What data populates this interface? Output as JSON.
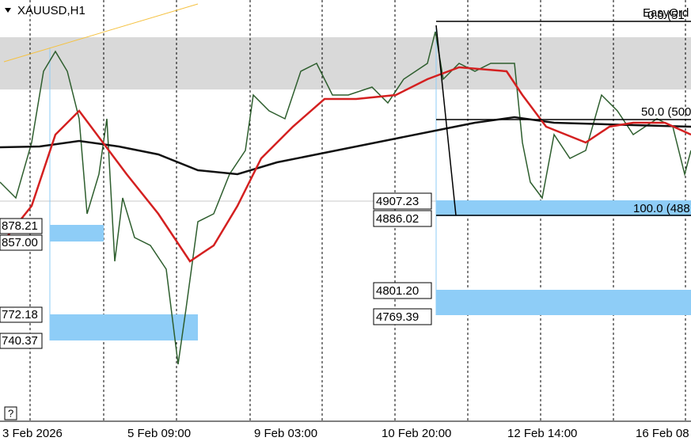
{
  "header": {
    "symbol": "XAUUSD,H1"
  },
  "time_axis": [
    "3 Feb 2026",
    "5 Feb 09:00",
    "9 Feb 03:00",
    "10 Feb 20:00",
    "12 Feb 14:00",
    "16 Feb 08"
  ],
  "left_zone_labels": [
    "878.21",
    "857.00",
    "772.18",
    "740.37"
  ],
  "right_zone_labels": [
    "4907.23",
    "4886.02",
    "4801.20",
    "4769.39"
  ],
  "fib_levels": [
    "0.0 (51",
    "50.0 (500",
    "100.0 (488"
  ],
  "overlay_text": "EasyOrd",
  "help": "?"
}
